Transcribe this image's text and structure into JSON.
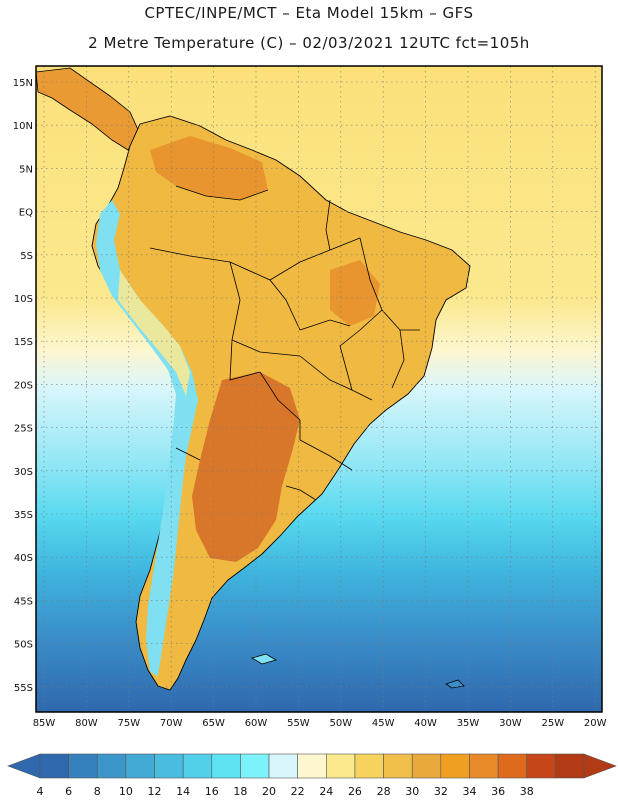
{
  "titles": {
    "line1": "CPTEC/INPE/MCT –  Eta Model 15km – GFS",
    "line2": "2 Metre Temperature (C) – 02/03/2021 12UTC fct=105h"
  },
  "map": {
    "lat_labels": [
      "15N",
      "10N",
      "5N",
      "EQ",
      "5S",
      "10S",
      "15S",
      "20S",
      "25S",
      "30S",
      "35S",
      "40S",
      "45S",
      "50S",
      "55S"
    ],
    "lon_labels": [
      "85W",
      "80W",
      "75W",
      "70W",
      "65W",
      "60W",
      "55W",
      "50W",
      "45W",
      "40W",
      "35W",
      "30W",
      "25W",
      "20W"
    ],
    "ocean_bands": [
      {
        "color": "#fbe07a",
        "level": 26
      },
      {
        "color": "#fbe98e",
        "level": 24
      },
      {
        "color": "#fdf6cf",
        "level": 22
      },
      {
        "color": "#d8f6fb",
        "level": 20
      },
      {
        "color": "#8ee6f5",
        "level": 18
      },
      {
        "color": "#56d8ef",
        "level": 16
      },
      {
        "color": "#3fb6df",
        "level": 12
      },
      {
        "color": "#3a8fca",
        "level": 8
      },
      {
        "color": "#2f68ad",
        "level": 6
      }
    ],
    "land_colors": {
      "warm": "#f0b941",
      "hot": "#e89530",
      "very_hot": "#d8762a",
      "north_coast": "#e99a33",
      "andes_cold": "#7fe0f2",
      "andes_cool": "#fbe98e"
    }
  },
  "colorbar": {
    "ticks": [
      "4",
      "6",
      "8",
      "10",
      "12",
      "14",
      "16",
      "18",
      "20",
      "22",
      "24",
      "26",
      "28",
      "30",
      "32",
      "34",
      "36",
      "38"
    ],
    "colors": [
      "#2f68ad",
      "#3580bd",
      "#3b97c9",
      "#43aad6",
      "#49bde0",
      "#52d0ea",
      "#5ee3f3",
      "#7cf2fb",
      "#d8f6fb",
      "#fdf6cf",
      "#fbe98e",
      "#f6d35f",
      "#f1c04b",
      "#eaa93b",
      "#f0a020",
      "#e88a2a",
      "#de6a1e",
      "#c6461a",
      "#b23a14"
    ]
  }
}
